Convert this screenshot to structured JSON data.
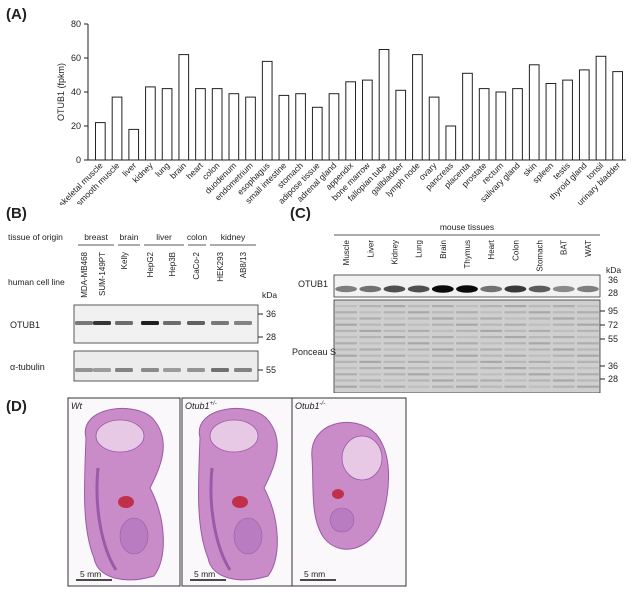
{
  "panels": {
    "A": {
      "label": "(A)"
    },
    "B": {
      "label": "(B)"
    },
    "C": {
      "label": "(C)"
    },
    "D": {
      "label": "(D)"
    }
  },
  "chart_data": {
    "type": "bar",
    "ylabel": "OTUB1 (fpkm)",
    "xlabel": "",
    "ylim": [
      0,
      80
    ],
    "yticks": [
      0,
      20,
      40,
      60,
      80
    ],
    "grid": false,
    "categories": [
      "skeletal muscle",
      "smooth muscle",
      "liver",
      "kidney",
      "lung",
      "brain",
      "heart",
      "colon",
      "duodenum",
      "endometrium",
      "esophagus",
      "small intestine",
      "stomach",
      "adipose tissue",
      "adrenal gland",
      "appendix",
      "bone marrow",
      "fallopian tube",
      "gallbladder",
      "lymph node",
      "ovary",
      "pancreas",
      "placenta",
      "prostate",
      "rectum",
      "salivary gland",
      "skin",
      "spleen",
      "testis",
      "thyroid gland",
      "tonsil",
      "urinary bladder"
    ],
    "values": [
      22,
      37,
      18,
      43,
      42,
      62,
      42,
      42,
      39,
      37,
      58,
      38,
      39,
      31,
      39,
      46,
      47,
      65,
      41,
      62,
      37,
      20,
      51,
      42,
      40,
      42,
      56,
      45,
      47,
      53,
      61,
      52
    ],
    "bar_color": "#ffffff",
    "edge_color": "#222222"
  },
  "panelB": {
    "row_tissue_label": "tissue of origin",
    "row_cell_label": "human cell line",
    "tissue_groups": [
      "breast",
      "brain",
      "liver",
      "colon",
      "kidney"
    ],
    "cell_lines": [
      "MDA-MB468",
      "SUM-149PT",
      "Kelly",
      "HepG2",
      "Hep3B",
      "CaCo-2",
      "HEK293",
      "AB8/13"
    ],
    "blots": [
      "OTUB1",
      "α-tubulin"
    ],
    "kda_label": "kDa",
    "markers_top": [
      "36",
      "28"
    ],
    "markers_bottom": [
      "55"
    ],
    "band_intensity_otub1": [
      0.55,
      0.85,
      0.6,
      0.95,
      0.6,
      0.65,
      0.55,
      0.5
    ],
    "band_intensity_tubulin": [
      0.5,
      0.45,
      0.6,
      0.55,
      0.45,
      0.5,
      0.7,
      0.6
    ]
  },
  "panelC": {
    "header": "mouse tissues",
    "tissues": [
      "Muscle",
      "Liver",
      "Kidney",
      "Lung",
      "Brain",
      "Thymus",
      "Heart",
      "Colon",
      "Stomach",
      "BAT",
      "WAT"
    ],
    "blot_label": "OTUB1",
    "stain_label": "Ponceau S",
    "kda_label": "kDa",
    "markers_top": [
      "36",
      "28"
    ],
    "markers_bottom": [
      "95",
      "72",
      "55",
      "36",
      "28"
    ],
    "band_intensity_otub1": [
      0.5,
      0.55,
      0.7,
      0.7,
      1.0,
      1.0,
      0.55,
      0.8,
      0.65,
      0.45,
      0.5
    ]
  },
  "panelD": {
    "genotypes": [
      "Wt",
      "Otub1",
      "Otub1"
    ],
    "superscripts": [
      "",
      "+/-",
      "-/-"
    ],
    "scale_text": [
      "5 mm",
      "5 mm",
      "5 mm"
    ],
    "tissue_color": "#c98cc8",
    "tissue_dark": "#9b5aa8",
    "blood_color": "#c0304a"
  }
}
